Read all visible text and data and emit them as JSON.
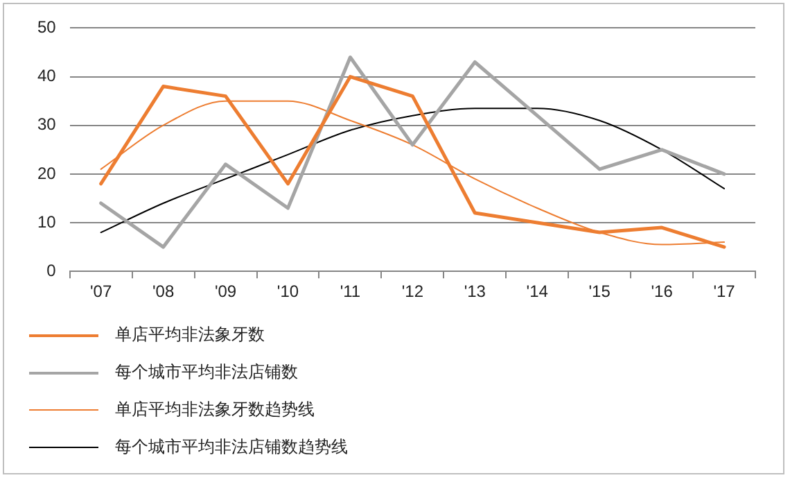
{
  "chart_data": {
    "type": "line",
    "categories": [
      "'07",
      "'08",
      "'09",
      "'10",
      "'11",
      "'12",
      "'13",
      "'14",
      "'15",
      "'16",
      "'17"
    ],
    "series": [
      {
        "name": "单店平均非法象牙数",
        "color": "#ed7d31",
        "values": [
          18,
          38,
          36,
          18,
          40,
          36,
          12,
          10,
          8,
          9,
          5
        ]
      },
      {
        "name": "每个城市平均非法店铺数",
        "color": "#a5a5a5",
        "values": [
          14,
          5,
          22,
          13,
          44,
          26,
          43,
          32,
          21,
          25,
          20
        ]
      },
      {
        "name": "单店平均非法象牙数趋势线",
        "color": "#ed7d31",
        "values": [
          21,
          30,
          35,
          35,
          31,
          26,
          19,
          13,
          8,
          5.5,
          6
        ]
      },
      {
        "name": "每个城市平均非法店铺数趋势线",
        "color": "#000000",
        "values": [
          8,
          14,
          19,
          24,
          29,
          32,
          33.5,
          33.5,
          31,
          25,
          17
        ]
      }
    ],
    "ylim": [
      0,
      50
    ],
    "yticks": [
      0,
      10,
      20,
      30,
      40,
      50
    ],
    "grid": "y",
    "legend": "bottom left",
    "marker": "none",
    "line_style": "solid"
  }
}
